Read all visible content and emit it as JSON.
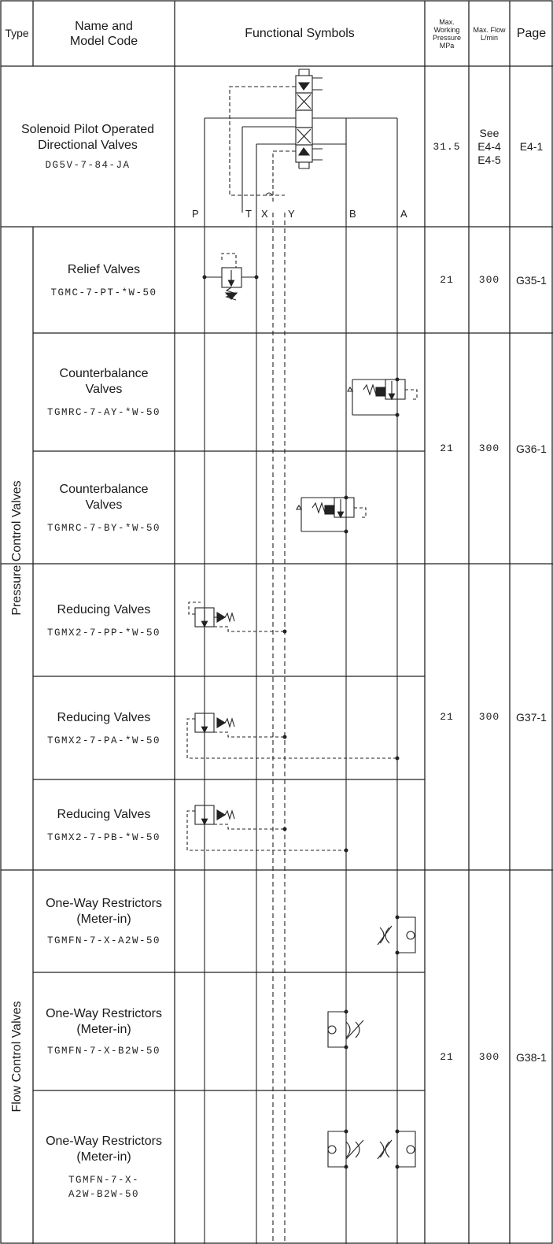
{
  "header": {
    "type": "Type",
    "name_line1": "Name and",
    "name_line2": "Model Code",
    "symbols": "Functional Symbols",
    "pressure": [
      "Max.",
      "Working",
      "Pressure",
      "MPa"
    ],
    "flow": [
      "Max. Flow",
      "L/min"
    ],
    "page": "Page"
  },
  "ports": [
    "P",
    "T",
    "X",
    "Y",
    "B",
    "A"
  ],
  "groups": [
    {
      "label": "Pressure Control Valves"
    },
    {
      "label": "Flow Control Valves"
    }
  ],
  "rows": [
    {
      "name": [
        "Solenoid Pilot Operated",
        "Directional Valves"
      ],
      "code": [
        "DG5V-7-84-JA"
      ]
    },
    {
      "name": [
        "Relief Valves"
      ],
      "code": [
        "TGMC-7-PT-*W-50"
      ]
    },
    {
      "name": [
        "Counterbalance",
        "Valves"
      ],
      "code": [
        "TGMRC-7-AY-*W-50"
      ]
    },
    {
      "name": [
        "Counterbalance",
        "Valves"
      ],
      "code": [
        "TGMRC-7-BY-*W-50"
      ]
    },
    {
      "name": [
        "Reducing Valves"
      ],
      "code": [
        "TGMX2-7-PP-*W-50"
      ]
    },
    {
      "name": [
        "Reducing Valves"
      ],
      "code": [
        "TGMX2-7-PA-*W-50"
      ]
    },
    {
      "name": [
        "Reducing Valves"
      ],
      "code": [
        "TGMX2-7-PB-*W-50"
      ]
    },
    {
      "name": [
        "One-Way Restrictors",
        "(Meter-in)"
      ],
      "code": [
        "TGMFN-7-X-A2W-50"
      ]
    },
    {
      "name": [
        "One-Way Restrictors",
        "(Meter-in)"
      ],
      "code": [
        "TGMFN-7-X-B2W-50"
      ]
    },
    {
      "name": [
        "One-Way Restrictors",
        "(Meter-in)"
      ],
      "code": [
        "TGMFN-7-X-",
        "A2W-B2W-50"
      ]
    }
  ],
  "specs": [
    {
      "pressure": "31.5",
      "flow": [
        "See",
        "E4-4",
        "E4-5"
      ],
      "page": "E4-1"
    },
    {
      "pressure": "21",
      "flow": [
        "300"
      ],
      "page": "G35-1"
    },
    {
      "pressure": "21",
      "flow": [
        "300"
      ],
      "page": "G36-1"
    },
    {
      "pressure": "21",
      "flow": [
        "300"
      ],
      "page": "G37-1"
    },
    {
      "pressure": "21",
      "flow": [
        "300"
      ],
      "page": "G38-1"
    }
  ]
}
